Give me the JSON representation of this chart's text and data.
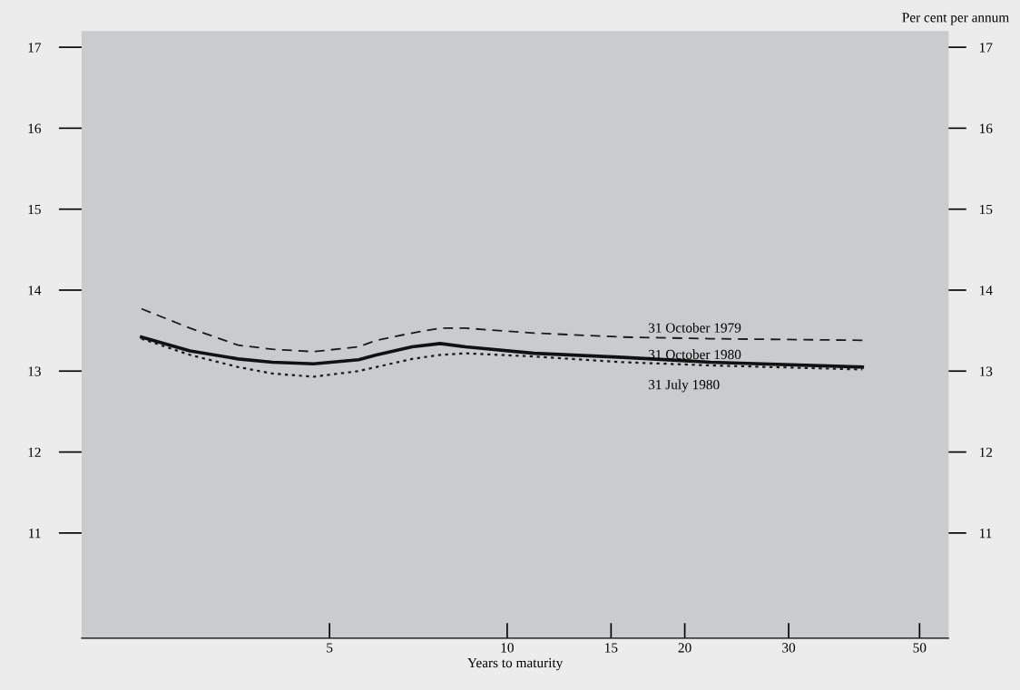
{
  "chart_data": {
    "type": "line",
    "xlabel": "Years to maturity",
    "y2label": "Per cent per annum",
    "log": "x",
    "xlim": [
      1.9,
      56
    ],
    "xticks": [
      5,
      10,
      15,
      20,
      30,
      50
    ],
    "ylim": [
      9.7,
      17.2
    ],
    "yticks": [
      11,
      12,
      13,
      14,
      15,
      16,
      17
    ],
    "y2lim": [
      9.7,
      17.2
    ],
    "y2ticks": [
      11,
      12,
      13,
      14,
      15,
      16,
      17
    ],
    "grid": false,
    "legend": false,
    "marker": "none",
    "x": [
      2.4,
      2.9,
      3.5,
      4.0,
      4.7,
      5.6,
      6.0,
      6.9,
      7.7,
      8.5,
      11.1,
      15.7,
      22.1,
      40.0
    ],
    "series": [
      {
        "name": "31 October 1979",
        "color": "#1a1a1a",
        "line_style": "dashed",
        "values": [
          13.77,
          13.53,
          13.32,
          13.27,
          13.24,
          13.3,
          13.38,
          13.47,
          13.53,
          13.53,
          13.47,
          13.42,
          13.4,
          13.38
        ]
      },
      {
        "name": "31 October 1980",
        "color": "#111111",
        "line_style": "solid",
        "values": [
          13.42,
          13.25,
          13.15,
          13.11,
          13.09,
          13.14,
          13.2,
          13.3,
          13.34,
          13.3,
          13.22,
          13.17,
          13.11,
          13.05
        ]
      },
      {
        "name": "31 July 1980",
        "color": "#1a1a1a",
        "line_style": "dotted",
        "values": [
          13.4,
          13.2,
          13.05,
          12.97,
          12.93,
          13.0,
          13.05,
          13.15,
          13.2,
          13.22,
          13.18,
          13.11,
          13.07,
          13.02
        ]
      }
    ]
  }
}
